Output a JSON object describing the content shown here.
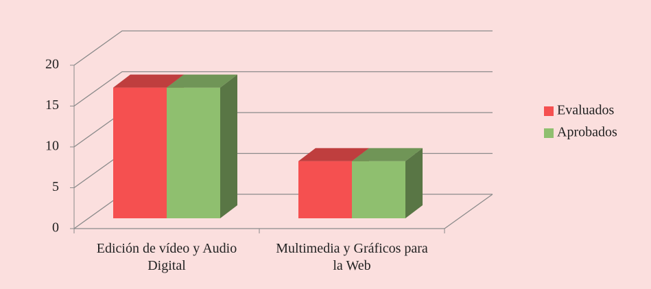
{
  "chart_data": {
    "type": "bar3d",
    "categories": [
      "Edición de vídeo y Audio Digital",
      "Multimedia y Gráficos para la Web"
    ],
    "series": [
      {
        "name": "Evaluados",
        "color": "#f55050",
        "values": [
          16,
          7
        ]
      },
      {
        "name": "Aprobados",
        "color": "#8fbf6f",
        "values": [
          16,
          7
        ]
      }
    ],
    "ylim": [
      0,
      20
    ],
    "yticks": [
      0,
      5,
      10,
      15,
      20
    ],
    "grid": true,
    "legend": "right"
  }
}
